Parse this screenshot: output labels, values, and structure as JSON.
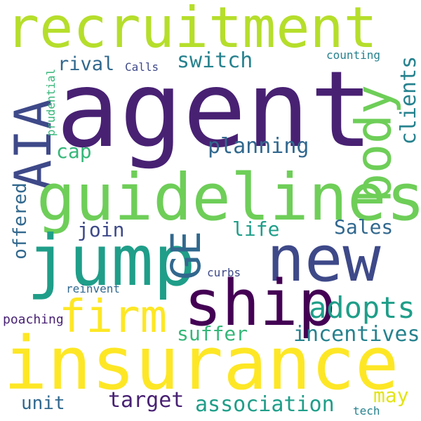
{
  "palette": {
    "dark_purple": "#482173",
    "deep_purple": "#440154",
    "indigo": "#3e4989",
    "slate_blue": "#31688e",
    "teal_blue": "#26828e",
    "teal": "#1f9e89",
    "green": "#35b779",
    "light_green": "#6ece58",
    "lime": "#b5de2b",
    "yellow": "#fde725",
    "gold": "#e3e418"
  },
  "words": {
    "recruitment": "recruitment",
    "agent": "agent",
    "aia": "AIA",
    "body": "body",
    "guidelines": "guidelines",
    "jump": "jump",
    "ge": "GE",
    "new": "new",
    "ship": "ship",
    "firm": "firm",
    "insurance": "insurance",
    "adopts": "adopts",
    "planning": "planning",
    "switch": "switch",
    "rival": "rival",
    "calls": "Calls",
    "counting": "counting",
    "clients": "clients",
    "prudential": "prudential",
    "cap": "cap",
    "join": "join",
    "life": "life",
    "sales": "Sales",
    "offered": "offered",
    "curbs": "curbs",
    "reinvent": "reinvent",
    "poaching": "poaching",
    "suffer": "suffer",
    "incentives": "incentives",
    "target": "target",
    "unit": "unit",
    "association": "association",
    "may": "may",
    "tech": "tech"
  }
}
